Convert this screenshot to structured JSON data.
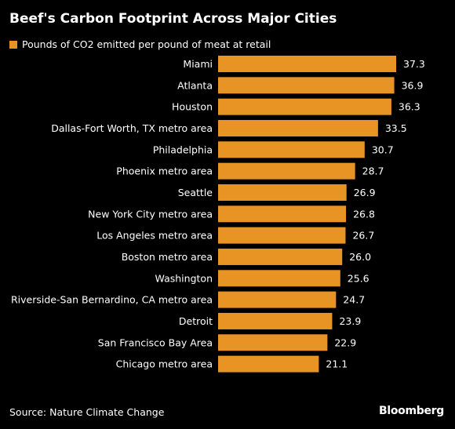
{
  "chart_data": {
    "type": "bar",
    "orientation": "horizontal",
    "title": "Beef's Carbon Footprint Across Major Cities",
    "legend": {
      "label": "Pounds of CO2 emitted per pound of meat at retail",
      "position": "top-left"
    },
    "categories": [
      "Miami",
      "Atlanta",
      "Houston",
      "Dallas-Fort Worth, TX metro area",
      "Philadelphia",
      "Phoenix metro area",
      "Seattle",
      "New York City metro area",
      "Los Angeles metro area",
      "Boston metro area",
      "Washington",
      "Riverside-San Bernardino, CA metro area",
      "Detroit",
      "San Francisco Bay Area",
      "Chicago metro area"
    ],
    "values": [
      37.3,
      36.9,
      36.3,
      33.5,
      30.7,
      28.7,
      26.9,
      26.8,
      26.7,
      26.0,
      25.6,
      24.7,
      23.9,
      22.9,
      21.1
    ],
    "value_labels": [
      "37.3",
      "36.9",
      "36.3",
      "33.5",
      "30.7",
      "28.7",
      "26.9",
      "26.8",
      "26.7",
      "26.0",
      "25.6",
      "24.7",
      "23.9",
      "22.9",
      "21.1"
    ],
    "xlim": [
      0,
      37.3
    ],
    "grid": false,
    "xlabel": "",
    "ylabel": ""
  },
  "colors": {
    "background": "#000000",
    "bar": "#e89424",
    "text": "#ffffff"
  },
  "source": "Source: Nature Climate Change",
  "brand": "Bloomberg"
}
